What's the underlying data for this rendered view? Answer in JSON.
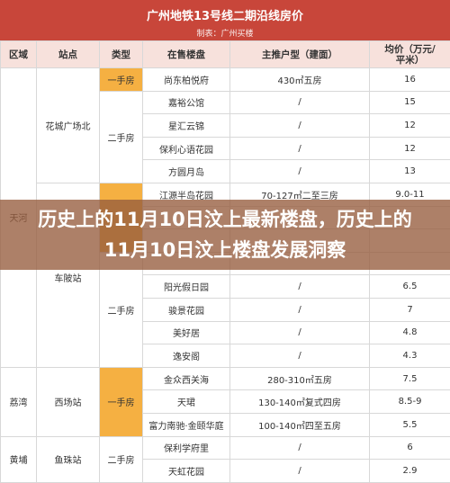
{
  "header": {
    "title": "广州地铁13号线二期沿线房价",
    "subtitle": "制表：广州买楼"
  },
  "overlay_title": "历史上的11月10日汶上最新楼盘，历史上的11月10日汶上楼盘发展洞察",
  "table": {
    "columns": [
      "区域",
      "站点",
      "类型",
      "在售楼盘",
      "主推户型（建面）",
      "均价（万元/平米）"
    ],
    "districts": [
      "天河",
      "荔湾",
      "黄埔"
    ],
    "stations": [
      "花城广场北",
      "车陂站",
      "西场站",
      "鱼珠站"
    ],
    "types": [
      "一手房",
      "二手房",
      "二手房",
      "一手房",
      "二手房"
    ],
    "rows": [
      [
        "尚东柏悦府",
        "430㎡五房",
        "16"
      ],
      [
        "嘉裕公馆",
        "/",
        "15"
      ],
      [
        "星汇云锦",
        "/",
        "12"
      ],
      [
        "保利心语花园",
        "/",
        "12"
      ],
      [
        "方圆月岛",
        "/",
        "13"
      ],
      [
        "江源半岛花园",
        "70-127㎡二至三房",
        "9.0-11"
      ],
      [
        "阳光假日园",
        "/",
        "6.5"
      ],
      [
        "骏景花园",
        "/",
        "7"
      ],
      [
        "美好居",
        "/",
        "4.8"
      ],
      [
        "逸安阁",
        "/",
        "4.3"
      ],
      [
        "金众西关海",
        "280-310㎡五房",
        "7.5"
      ],
      [
        "天珺",
        "130-140㎡复式四房",
        "8.5-9"
      ],
      [
        "富力南驰·金颐华庭",
        "100-140㎡四至五房",
        "5.5"
      ],
      [
        "保利学府里",
        "/",
        "6"
      ],
      [
        "天虹花园",
        "/",
        "2.9"
      ]
    ]
  }
}
